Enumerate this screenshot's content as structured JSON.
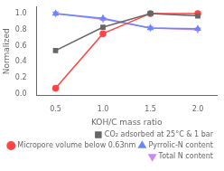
{
  "chart_data": {
    "type": "line",
    "xlabel": "KOH/C mass ratio",
    "ylabel": "Normalized",
    "x": [
      0.5,
      1.0,
      1.5,
      2.0
    ],
    "series": [
      {
        "name": "CO₂ adsorbed at 25°C & 1 bar",
        "color": "#666666",
        "marker": "square",
        "values": [
          0.54,
          0.83,
          1.0,
          0.97
        ]
      },
      {
        "name": "Micropore volume below 0.63nm",
        "color": "#ff4444",
        "marker": "circle",
        "values": [
          0.07,
          0.75,
          1.0,
          1.0
        ]
      },
      {
        "name": "Pyrrolic-N content",
        "color": "#6688ff",
        "marker": "triangle-up",
        "values": [
          1.0,
          0.94,
          0.82,
          0.81
        ]
      },
      {
        "name": "Total N content",
        "color": "#cc88ee",
        "marker": "triangle-down",
        "values": [
          1.0,
          0.93,
          0.82,
          0.8
        ]
      }
    ],
    "xlim": [
      0.3,
      2.2
    ],
    "ylim": [
      -0.02,
      1.08
    ],
    "xticks": [
      0.5,
      {
        "value": 1,
        "label": "1.0"
      },
      1.5,
      {
        "value": 2,
        "label": "2.0"
      }
    ],
    "yticks": [
      {
        "value": 0,
        "label": "0.0"
      },
      0.2,
      0.4,
      0.6,
      0.8,
      {
        "value": 1,
        "label": "1.0"
      }
    ],
    "grid": false,
    "legend": "bottom"
  }
}
